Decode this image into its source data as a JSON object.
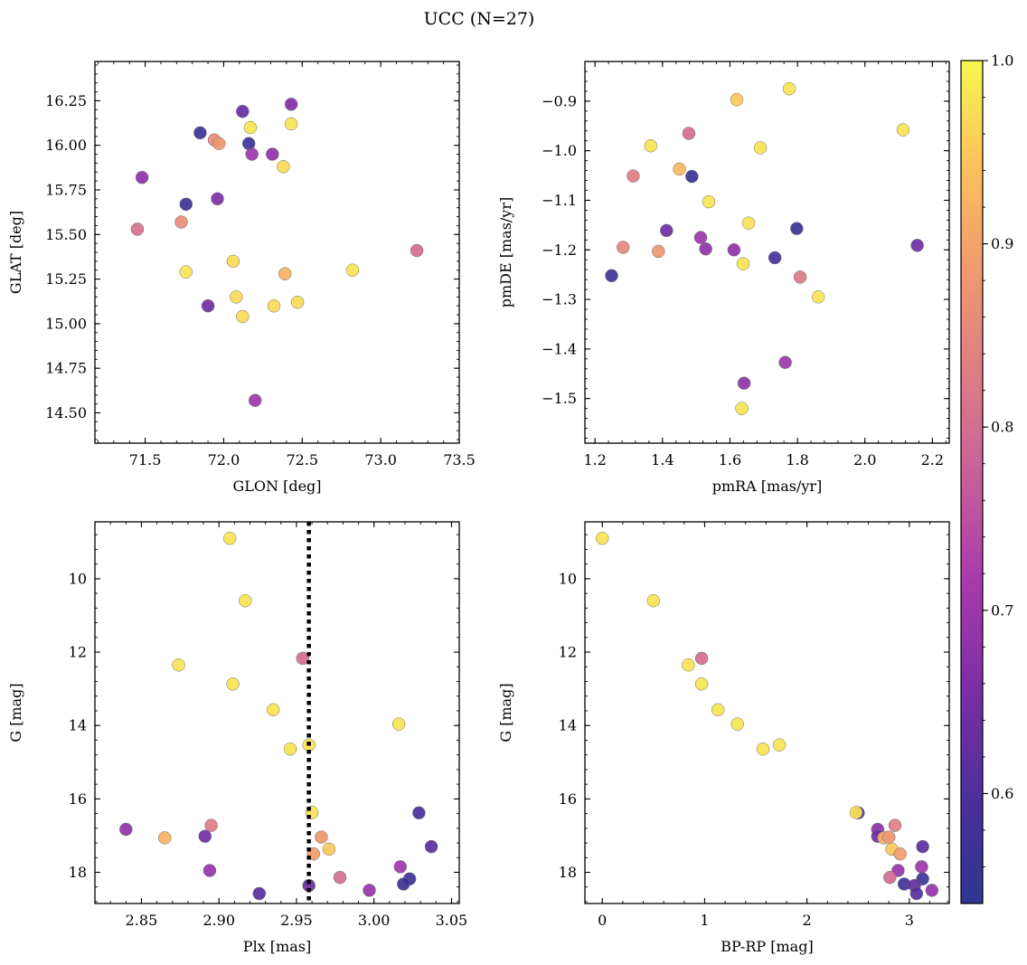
{
  "figure": {
    "title": "UCC (N=27)"
  },
  "colorbar": {
    "colormap": "plasma",
    "range": [
      0.54,
      1.0
    ],
    "ticks": [
      0.6,
      0.7,
      0.8,
      0.9,
      1.0
    ],
    "tick_labels": [
      "0.6",
      "0.7",
      "0.8",
      "0.9",
      "1.0"
    ]
  },
  "chart_data": [
    {
      "type": "scatter",
      "xlabel": "GLON [deg]",
      "ylabel": "GLAT [deg]",
      "xlim": [
        71.18,
        73.5
      ],
      "ylim": [
        14.33,
        16.47
      ],
      "xticks": [
        71.5,
        72.0,
        72.5,
        73.0,
        73.5
      ],
      "xtick_labels": [
        "71.5",
        "72.0",
        "72.5",
        "73.0",
        "73.5"
      ],
      "yticks": [
        14.5,
        14.75,
        15.0,
        15.25,
        15.5,
        15.75,
        16.0,
        16.25
      ],
      "ytick_labels": [
        "14.50",
        "14.75",
        "15.00",
        "15.25",
        "15.50",
        "15.75",
        "16.00",
        "16.25"
      ],
      "y_inverted": false,
      "points": [
        {
          "x": 71.85,
          "y": 16.07,
          "c": 0.56
        },
        {
          "x": 72.12,
          "y": 16.19,
          "c": 0.63
        },
        {
          "x": 72.43,
          "y": 16.23,
          "c": 0.66
        },
        {
          "x": 72.17,
          "y": 16.1,
          "c": 0.98
        },
        {
          "x": 72.43,
          "y": 16.12,
          "c": 0.98
        },
        {
          "x": 71.94,
          "y": 16.03,
          "c": 0.86
        },
        {
          "x": 71.97,
          "y": 16.01,
          "c": 0.88
        },
        {
          "x": 72.16,
          "y": 16.01,
          "c": 0.56
        },
        {
          "x": 72.18,
          "y": 15.95,
          "c": 0.7
        },
        {
          "x": 72.31,
          "y": 15.95,
          "c": 0.68
        },
        {
          "x": 72.38,
          "y": 15.88,
          "c": 0.97
        },
        {
          "x": 71.48,
          "y": 15.82,
          "c": 0.68
        },
        {
          "x": 71.96,
          "y": 15.7,
          "c": 0.66
        },
        {
          "x": 71.76,
          "y": 15.67,
          "c": 0.57
        },
        {
          "x": 71.73,
          "y": 15.57,
          "c": 0.86
        },
        {
          "x": 71.45,
          "y": 15.53,
          "c": 0.81
        },
        {
          "x": 73.23,
          "y": 15.41,
          "c": 0.8
        },
        {
          "x": 72.06,
          "y": 15.35,
          "c": 0.97
        },
        {
          "x": 71.76,
          "y": 15.29,
          "c": 0.98
        },
        {
          "x": 72.82,
          "y": 15.3,
          "c": 0.98
        },
        {
          "x": 72.39,
          "y": 15.28,
          "c": 0.92
        },
        {
          "x": 72.08,
          "y": 15.15,
          "c": 0.97
        },
        {
          "x": 72.47,
          "y": 15.12,
          "c": 0.97
        },
        {
          "x": 71.9,
          "y": 15.1,
          "c": 0.64
        },
        {
          "x": 72.32,
          "y": 15.1,
          "c": 0.97
        },
        {
          "x": 72.12,
          "y": 15.04,
          "c": 0.97
        },
        {
          "x": 72.2,
          "y": 14.57,
          "c": 0.7
        }
      ]
    },
    {
      "type": "scatter",
      "xlabel": "pmRA [mas/yr]",
      "ylabel": "pmDE [mas/yr]",
      "xlim": [
        1.17,
        2.25
      ],
      "ylim": [
        -1.59,
        -0.82
      ],
      "xticks": [
        1.2,
        1.4,
        1.6,
        1.8,
        2.0,
        2.2
      ],
      "xtick_labels": [
        "1.2",
        "1.4",
        "1.6",
        "1.8",
        "2.0",
        "2.2"
      ],
      "yticks": [
        -1.5,
        -1.4,
        -1.3,
        -1.2,
        -1.1,
        -1.0,
        -0.9
      ],
      "ytick_labels": [
        "−1.5",
        "−1.4",
        "−1.3",
        "−1.2",
        "−1.1",
        "−1.0",
        "−0.9"
      ],
      "y_inverted": false,
      "points": [
        {
          "x": 1.776,
          "y": -0.875,
          "c": 0.98
        },
        {
          "x": 1.62,
          "y": -0.897,
          "c": 0.95
        },
        {
          "x": 2.113,
          "y": -0.958,
          "c": 0.98
        },
        {
          "x": 1.478,
          "y": -0.965,
          "c": 0.8
        },
        {
          "x": 1.365,
          "y": -0.99,
          "c": 0.98
        },
        {
          "x": 1.69,
          "y": -0.994,
          "c": 0.98
        },
        {
          "x": 1.45,
          "y": -1.037,
          "c": 0.93
        },
        {
          "x": 1.313,
          "y": -1.051,
          "c": 0.83
        },
        {
          "x": 1.487,
          "y": -1.052,
          "c": 0.56
        },
        {
          "x": 1.537,
          "y": -1.103,
          "c": 0.98
        },
        {
          "x": 1.655,
          "y": -1.146,
          "c": 0.98
        },
        {
          "x": 1.798,
          "y": -1.157,
          "c": 0.56
        },
        {
          "x": 1.412,
          "y": -1.161,
          "c": 0.64
        },
        {
          "x": 1.513,
          "y": -1.175,
          "c": 0.7
        },
        {
          "x": 2.155,
          "y": -1.191,
          "c": 0.64
        },
        {
          "x": 1.283,
          "y": -1.195,
          "c": 0.85
        },
        {
          "x": 1.528,
          "y": -1.198,
          "c": 0.68
        },
        {
          "x": 1.612,
          "y": -1.2,
          "c": 0.68
        },
        {
          "x": 1.388,
          "y": -1.203,
          "c": 0.88
        },
        {
          "x": 1.733,
          "y": -1.216,
          "c": 0.59
        },
        {
          "x": 1.639,
          "y": -1.228,
          "c": 0.98
        },
        {
          "x": 1.249,
          "y": -1.252,
          "c": 0.57
        },
        {
          "x": 1.808,
          "y": -1.255,
          "c": 0.82
        },
        {
          "x": 1.862,
          "y": -1.295,
          "c": 0.98
        },
        {
          "x": 1.764,
          "y": -1.427,
          "c": 0.7
        },
        {
          "x": 1.642,
          "y": -1.469,
          "c": 0.68
        },
        {
          "x": 1.635,
          "y": -1.52,
          "c": 0.98
        }
      ]
    },
    {
      "type": "scatter",
      "xlabel": "Plx [mas]",
      "ylabel": "G [mag]",
      "xlim": [
        2.82,
        3.055
      ],
      "ylim": [
        18.85,
        8.45
      ],
      "xticks": [
        2.85,
        2.9,
        2.95,
        3.0,
        3.05
      ],
      "xtick_labels": [
        "2.85",
        "2.90",
        "2.95",
        "3.00",
        "3.05"
      ],
      "yticks": [
        10,
        12,
        14,
        16,
        18
      ],
      "ytick_labels": [
        "10",
        "12",
        "14",
        "16",
        "18"
      ],
      "y_inverted": true,
      "vline": 2.958,
      "points": [
        {
          "x": 2.907,
          "y": 8.9,
          "c": 0.98
        },
        {
          "x": 2.917,
          "y": 10.6,
          "c": 0.98
        },
        {
          "x": 2.954,
          "y": 12.17,
          "c": 0.8
        },
        {
          "x": 2.874,
          "y": 12.35,
          "c": 0.98
        },
        {
          "x": 2.909,
          "y": 12.87,
          "c": 0.98
        },
        {
          "x": 2.935,
          "y": 13.57,
          "c": 0.98
        },
        {
          "x": 3.016,
          "y": 13.96,
          "c": 0.98
        },
        {
          "x": 2.946,
          "y": 14.64,
          "c": 0.98
        },
        {
          "x": 2.958,
          "y": 14.53,
          "c": 0.98
        },
        {
          "x": 3.029,
          "y": 16.38,
          "c": 0.59
        },
        {
          "x": 2.96,
          "y": 16.37,
          "c": 0.98
        },
        {
          "x": 2.84,
          "y": 16.83,
          "c": 0.68
        },
        {
          "x": 2.895,
          "y": 16.72,
          "c": 0.83
        },
        {
          "x": 2.891,
          "y": 17.02,
          "c": 0.64
        },
        {
          "x": 2.865,
          "y": 17.06,
          "c": 0.92
        },
        {
          "x": 2.966,
          "y": 17.04,
          "c": 0.88
        },
        {
          "x": 2.971,
          "y": 17.37,
          "c": 0.95
        },
        {
          "x": 2.961,
          "y": 17.5,
          "c": 0.89
        },
        {
          "x": 3.037,
          "y": 17.3,
          "c": 0.61
        },
        {
          "x": 2.894,
          "y": 17.95,
          "c": 0.69
        },
        {
          "x": 3.017,
          "y": 17.85,
          "c": 0.7
        },
        {
          "x": 2.978,
          "y": 18.14,
          "c": 0.8
        },
        {
          "x": 3.023,
          "y": 18.18,
          "c": 0.57
        },
        {
          "x": 3.019,
          "y": 18.32,
          "c": 0.57
        },
        {
          "x": 2.958,
          "y": 18.36,
          "c": 0.63
        },
        {
          "x": 2.926,
          "y": 18.58,
          "c": 0.61
        },
        {
          "x": 2.997,
          "y": 18.49,
          "c": 0.69
        }
      ]
    },
    {
      "type": "scatter",
      "xlabel": "BP-RP [mag]",
      "ylabel": "G [mag]",
      "xlim": [
        -0.17,
        3.39
      ],
      "ylim": [
        18.85,
        8.45
      ],
      "xticks": [
        0,
        1,
        2,
        3
      ],
      "xtick_labels": [
        "0",
        "1",
        "2",
        "3"
      ],
      "yticks": [
        10,
        12,
        14,
        16,
        18
      ],
      "ytick_labels": [
        "10",
        "12",
        "14",
        "16",
        "18"
      ],
      "y_inverted": true,
      "points": [
        {
          "x": 0.0,
          "y": 8.9,
          "c": 0.98
        },
        {
          "x": 0.5,
          "y": 10.6,
          "c": 0.98
        },
        {
          "x": 0.97,
          "y": 12.17,
          "c": 0.8
        },
        {
          "x": 0.84,
          "y": 12.35,
          "c": 0.98
        },
        {
          "x": 0.97,
          "y": 12.87,
          "c": 0.98
        },
        {
          "x": 1.13,
          "y": 13.57,
          "c": 0.98
        },
        {
          "x": 1.32,
          "y": 13.96,
          "c": 0.98
        },
        {
          "x": 1.57,
          "y": 14.64,
          "c": 0.98
        },
        {
          "x": 1.73,
          "y": 14.53,
          "c": 0.98
        },
        {
          "x": 2.5,
          "y": 16.38,
          "c": 0.59
        },
        {
          "x": 2.48,
          "y": 16.37,
          "c": 0.98
        },
        {
          "x": 2.69,
          "y": 16.83,
          "c": 0.68
        },
        {
          "x": 2.86,
          "y": 16.72,
          "c": 0.83
        },
        {
          "x": 2.69,
          "y": 17.02,
          "c": 0.64
        },
        {
          "x": 2.75,
          "y": 17.06,
          "c": 0.92
        },
        {
          "x": 2.8,
          "y": 17.04,
          "c": 0.88
        },
        {
          "x": 2.83,
          "y": 17.37,
          "c": 0.95
        },
        {
          "x": 2.91,
          "y": 17.5,
          "c": 0.89
        },
        {
          "x": 3.13,
          "y": 17.3,
          "c": 0.61
        },
        {
          "x": 2.89,
          "y": 17.95,
          "c": 0.69
        },
        {
          "x": 3.12,
          "y": 17.85,
          "c": 0.7
        },
        {
          "x": 2.81,
          "y": 18.14,
          "c": 0.8
        },
        {
          "x": 3.13,
          "y": 18.18,
          "c": 0.57
        },
        {
          "x": 2.95,
          "y": 18.32,
          "c": 0.57
        },
        {
          "x": 3.05,
          "y": 18.36,
          "c": 0.63
        },
        {
          "x": 3.07,
          "y": 18.58,
          "c": 0.61
        },
        {
          "x": 3.22,
          "y": 18.49,
          "c": 0.69
        }
      ]
    }
  ]
}
